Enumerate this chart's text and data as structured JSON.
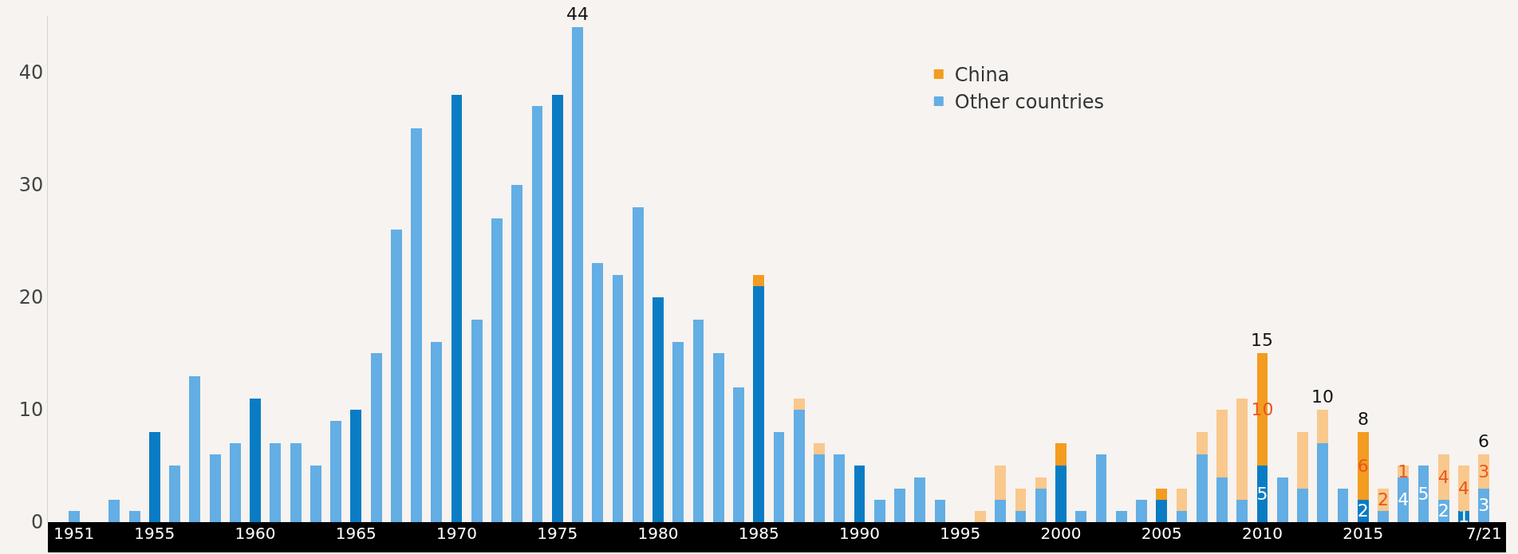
{
  "chart_data": {
    "type": "bar",
    "stacked": true,
    "categories": [
      "1951",
      null,
      null,
      null,
      "1955",
      null,
      null,
      null,
      null,
      "1960",
      null,
      null,
      null,
      null,
      "1965",
      null,
      null,
      null,
      null,
      "1970",
      null,
      null,
      null,
      null,
      "1975",
      null,
      null,
      null,
      null,
      "1980",
      null,
      null,
      null,
      null,
      "1985",
      null,
      null,
      null,
      null,
      "1990",
      null,
      null,
      null,
      null,
      "1995",
      null,
      null,
      null,
      null,
      "2000",
      null,
      null,
      null,
      null,
      "2005",
      null,
      null,
      null,
      null,
      "2010",
      null,
      null,
      null,
      null,
      "2015",
      null,
      null,
      null,
      null,
      null,
      "7/21"
    ],
    "series": [
      {
        "name": "Other countries",
        "color": "#63aee4",
        "colors": [
          "#63aee4",
          "#63aee4",
          "#63aee4",
          "#63aee4",
          "#0a7cc4",
          "#63aee4",
          "#63aee4",
          "#63aee4",
          "#63aee4",
          "#0a7cc4",
          "#63aee4",
          "#63aee4",
          "#63aee4",
          "#63aee4",
          "#0a7cc4",
          "#63aee4",
          "#63aee4",
          "#63aee4",
          "#63aee4",
          "#0a7cc4",
          "#63aee4",
          "#63aee4",
          "#63aee4",
          "#63aee4",
          "#0a7cc4",
          "#63aee4",
          "#63aee4",
          "#63aee4",
          "#63aee4",
          "#0a7cc4",
          "#63aee4",
          "#63aee4",
          "#63aee4",
          "#63aee4",
          "#0a7cc4",
          "#63aee4",
          "#63aee4",
          "#63aee4",
          "#63aee4",
          "#0a7cc4",
          "#63aee4",
          "#63aee4",
          "#63aee4",
          "#63aee4",
          "#0a7cc4",
          "#63aee4",
          "#63aee4",
          "#63aee4",
          "#63aee4",
          "#0a7cc4",
          "#63aee4",
          "#63aee4",
          "#63aee4",
          "#63aee4",
          "#0a7cc4",
          "#63aee4",
          "#63aee4",
          "#63aee4",
          "#63aee4",
          "#0a7cc4",
          "#63aee4",
          "#63aee4",
          "#63aee4",
          "#63aee4",
          "#0a7cc4",
          "#63aee4",
          "#63aee4",
          "#63aee4",
          "#63aee4",
          "#0a7cc4",
          "#63aee4"
        ],
        "values": [
          1,
          0,
          2,
          1,
          8,
          5,
          13,
          6,
          7,
          11,
          7,
          7,
          5,
          9,
          10,
          15,
          26,
          35,
          16,
          38,
          18,
          27,
          30,
          37,
          38,
          44,
          23,
          22,
          28,
          20,
          16,
          18,
          15,
          12,
          21,
          8,
          10,
          6,
          6,
          5,
          2,
          3,
          4,
          2,
          0,
          0,
          2,
          1,
          3,
          5,
          1,
          6,
          1,
          2,
          2,
          1,
          6,
          4,
          2,
          5,
          4,
          3,
          7,
          3,
          2,
          1,
          4,
          5,
          2,
          1,
          3
        ],
        "value_labels": [
          null,
          null,
          null,
          null,
          null,
          null,
          null,
          null,
          null,
          null,
          null,
          null,
          null,
          null,
          null,
          null,
          null,
          null,
          null,
          null,
          null,
          null,
          null,
          null,
          null,
          null,
          null,
          null,
          null,
          null,
          null,
          null,
          null,
          null,
          null,
          null,
          null,
          null,
          null,
          null,
          null,
          null,
          null,
          null,
          null,
          null,
          null,
          null,
          null,
          null,
          null,
          null,
          null,
          null,
          null,
          null,
          null,
          null,
          null,
          "5",
          null,
          null,
          null,
          null,
          "2",
          null,
          "4",
          "5",
          "2",
          "1",
          "3"
        ]
      },
      {
        "name": "China",
        "color": "#f39c1f",
        "colors": [
          "#f9c88c",
          "#f9c88c",
          "#f9c88c",
          "#f9c88c",
          "#f39c1f",
          "#f9c88c",
          "#f9c88c",
          "#f9c88c",
          "#f9c88c",
          "#f39c1f",
          "#f9c88c",
          "#f9c88c",
          "#f9c88c",
          "#f9c88c",
          "#f39c1f",
          "#f9c88c",
          "#f9c88c",
          "#f9c88c",
          "#f9c88c",
          "#f39c1f",
          "#f9c88c",
          "#f9c88c",
          "#f9c88c",
          "#f9c88c",
          "#f39c1f",
          "#f9c88c",
          "#f9c88c",
          "#f9c88c",
          "#f9c88c",
          "#f39c1f",
          "#f9c88c",
          "#f9c88c",
          "#f9c88c",
          "#f9c88c",
          "#f39c1f",
          "#f9c88c",
          "#f9c88c",
          "#f9c88c",
          "#f9c88c",
          "#f39c1f",
          "#f9c88c",
          "#f9c88c",
          "#f9c88c",
          "#f9c88c",
          "#f39c1f",
          "#f9c88c",
          "#f9c88c",
          "#f9c88c",
          "#f9c88c",
          "#f39c1f",
          "#f9c88c",
          "#f9c88c",
          "#f9c88c",
          "#f9c88c",
          "#f39c1f",
          "#f9c88c",
          "#f9c88c",
          "#f9c88c",
          "#f9c88c",
          "#f39c1f",
          "#f9c88c",
          "#f9c88c",
          "#f9c88c",
          "#f9c88c",
          "#f39c1f",
          "#f9c88c",
          "#f9c88c",
          "#f9c88c",
          "#f9c88c",
          "#f9c88c",
          "#f9c88c"
        ],
        "values": [
          0,
          0,
          0,
          0,
          0,
          0,
          0,
          0,
          0,
          0,
          0,
          0,
          0,
          0,
          0,
          0,
          0,
          0,
          0,
          0,
          0,
          0,
          0,
          0,
          0,
          0,
          0,
          0,
          0,
          0,
          0,
          0,
          0,
          0,
          1,
          0,
          1,
          1,
          0,
          0,
          0,
          0,
          0,
          0,
          0,
          1,
          3,
          2,
          1,
          2,
          0,
          0,
          0,
          0,
          1,
          2,
          2,
          6,
          9,
          10,
          0,
          5,
          3,
          0,
          6,
          2,
          1,
          0,
          4,
          4,
          3
        ],
        "value_labels": [
          null,
          null,
          null,
          null,
          null,
          null,
          null,
          null,
          null,
          null,
          null,
          null,
          null,
          null,
          null,
          null,
          null,
          null,
          null,
          null,
          null,
          null,
          null,
          null,
          null,
          null,
          null,
          null,
          null,
          null,
          null,
          null,
          null,
          null,
          null,
          null,
          null,
          null,
          null,
          null,
          null,
          null,
          null,
          null,
          null,
          null,
          null,
          null,
          null,
          null,
          null,
          null,
          null,
          null,
          null,
          null,
          null,
          null,
          null,
          "10",
          null,
          null,
          null,
          null,
          "6",
          "2",
          "1",
          null,
          "4",
          "4",
          "3"
        ]
      }
    ],
    "totals": [
      null,
      null,
      null,
      null,
      null,
      null,
      null,
      null,
      null,
      null,
      null,
      null,
      null,
      null,
      null,
      null,
      null,
      null,
      null,
      null,
      null,
      null,
      null,
      null,
      null,
      "44",
      null,
      null,
      null,
      null,
      null,
      null,
      null,
      null,
      null,
      null,
      null,
      null,
      null,
      null,
      null,
      null,
      null,
      null,
      null,
      null,
      null,
      null,
      null,
      null,
      null,
      null,
      null,
      null,
      null,
      null,
      null,
      null,
      null,
      "15",
      null,
      null,
      "10",
      null,
      "8",
      null,
      null,
      null,
      null,
      null,
      "6"
    ],
    "ylim": [
      0,
      45
    ],
    "yticks": [
      0,
      10,
      20,
      30,
      40
    ],
    "grid": false,
    "legend": "top right"
  }
}
